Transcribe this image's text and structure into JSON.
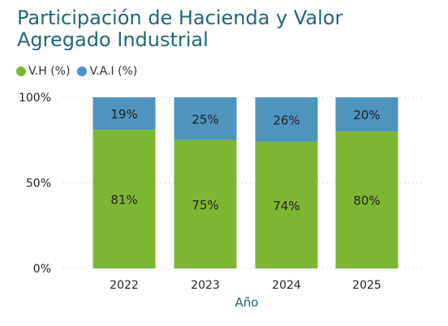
{
  "title": "Participación de Hacienda y Valor Agregado Industrial",
  "legend": [
    {
      "label": "V.H (%)",
      "color": "#7cb733"
    },
    {
      "label": "V.A.I (%)",
      "color": "#4e94bd"
    }
  ],
  "chart_data": {
    "type": "bar",
    "stacked": true,
    "title": "Participación de Hacienda y Valor Agregado Industrial",
    "xlabel": "Año",
    "ylabel": "",
    "categories": [
      "2022",
      "2023",
      "2024",
      "2025"
    ],
    "series": [
      {
        "name": "V.H (%)",
        "values": [
          81,
          75,
          74,
          80
        ],
        "labels": [
          "81%",
          "75%",
          "74%",
          "80%"
        ],
        "color": "#7cb733"
      },
      {
        "name": "V.A.I (%)",
        "values": [
          19,
          25,
          26,
          20
        ],
        "labels": [
          "19%",
          "25%",
          "26%",
          "20%"
        ],
        "color": "#4e94bd"
      }
    ],
    "ylim": [
      0,
      100
    ],
    "yticks": [
      {
        "value": 0,
        "label": "0%"
      },
      {
        "value": 50,
        "label": "50%"
      },
      {
        "value": 100,
        "label": "100%"
      }
    ],
    "grid": true,
    "legend_position": "top-left"
  }
}
